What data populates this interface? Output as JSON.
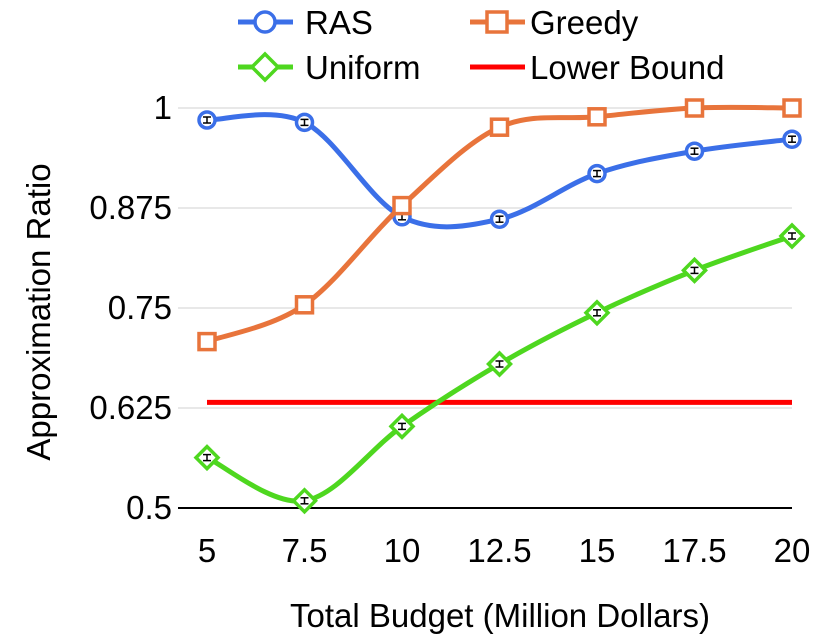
{
  "chart_data": {
    "type": "line",
    "title": "",
    "xlabel": "Total Budget (Million Dollars)",
    "ylabel": "Approximation Ratio",
    "x": [
      5,
      7.5,
      10,
      12.5,
      15,
      17.5,
      20
    ],
    "x_tick_labels": [
      "5",
      "7.5",
      "10",
      "12.5",
      "15",
      "17.5",
      "20"
    ],
    "xlim": [
      5,
      20
    ],
    "ylim": [
      0.5,
      1.0
    ],
    "y_ticks": [
      0.5,
      0.625,
      0.75,
      0.875,
      1.0
    ],
    "y_tick_labels": [
      "0.5",
      "0.625",
      "0.75",
      "0.875",
      "1"
    ],
    "grid": "horizontal",
    "legend_position": "top",
    "series": [
      {
        "name": "RAS",
        "marker": "circle",
        "color": "#3b6fe8",
        "values": [
          0.985,
          0.982,
          0.864,
          0.861,
          0.918,
          0.946,
          0.961
        ],
        "error_bars": true
      },
      {
        "name": "Greedy",
        "marker": "square",
        "color": "#e8743b",
        "values": [
          0.708,
          0.754,
          0.878,
          0.976,
          0.989,
          1.0,
          1.0
        ],
        "error_bars": false
      },
      {
        "name": "Uniform",
        "marker": "diamond",
        "color": "#4ed71f",
        "values": [
          0.563,
          0.509,
          0.602,
          0.68,
          0.744,
          0.797,
          0.84
        ],
        "error_bars": true
      },
      {
        "name": "Lower Bound",
        "marker": "none",
        "color": "#ff0000",
        "constant": 0.632
      }
    ]
  }
}
